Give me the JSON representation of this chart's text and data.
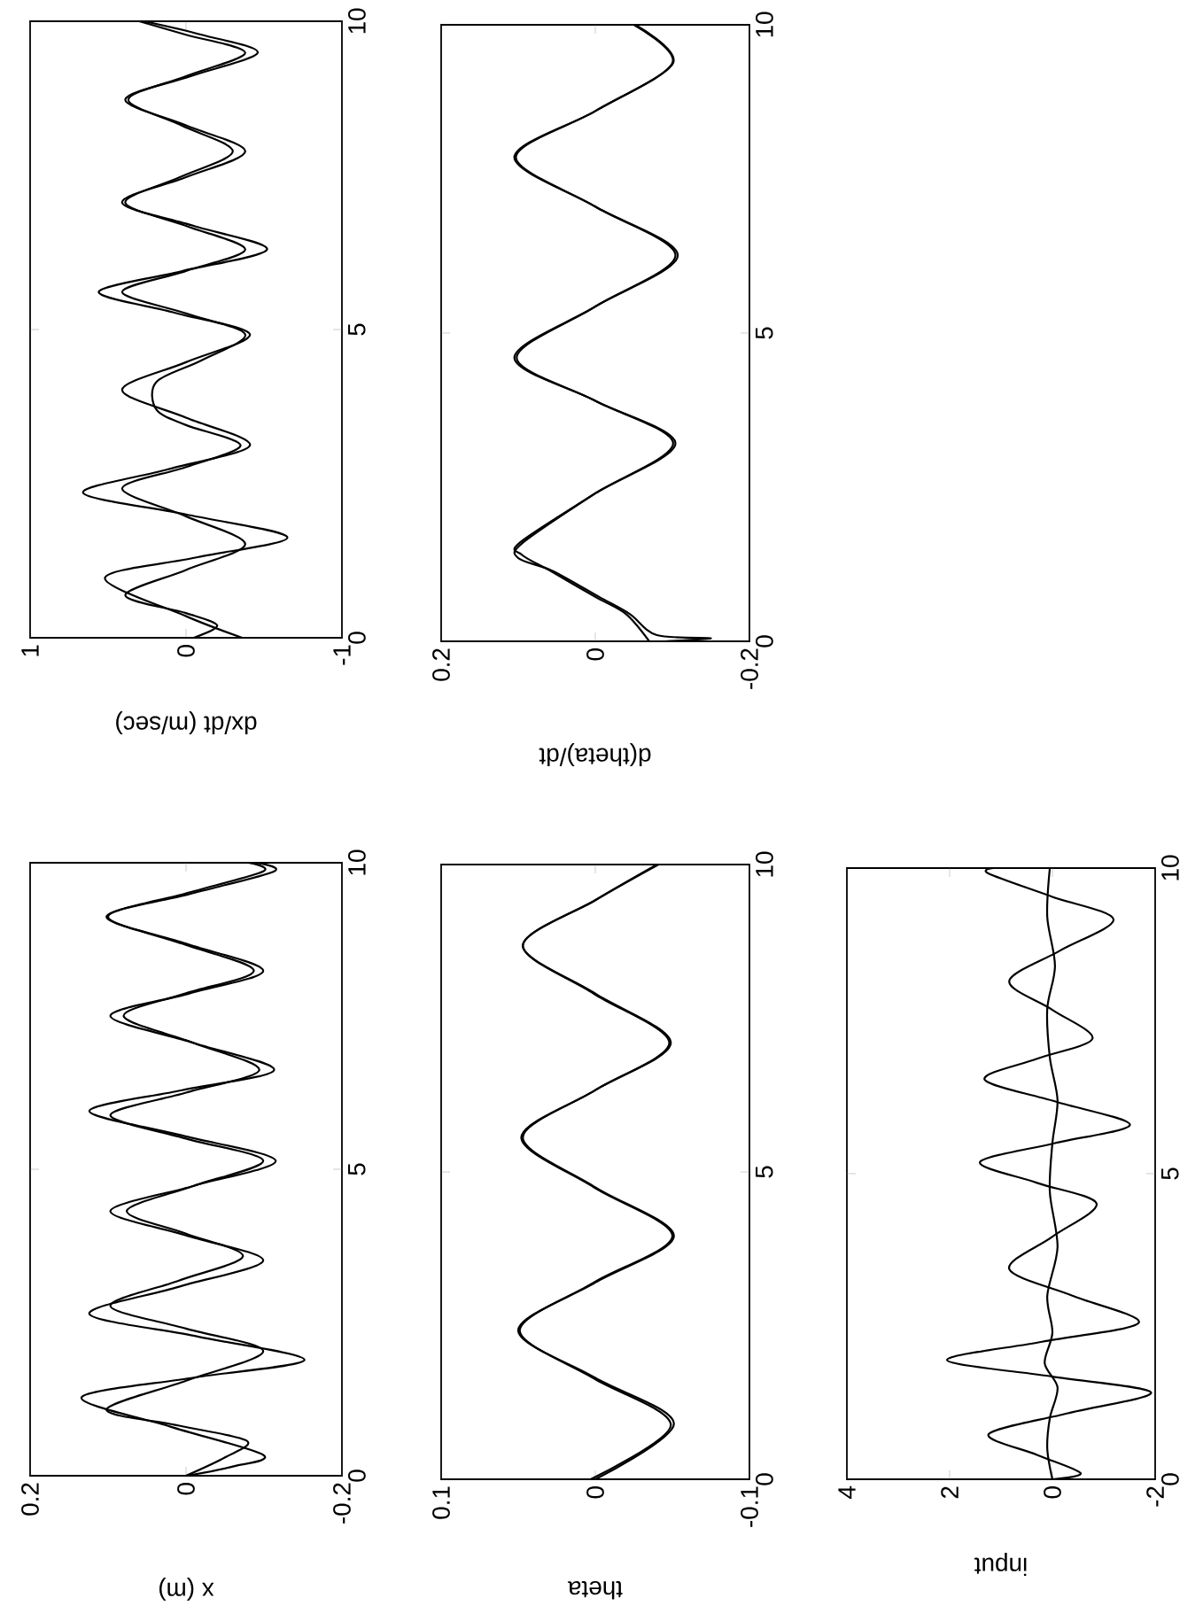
{
  "chart_data": [
    {
      "type": "line",
      "xlabel": "dx/dt (m/sec)",
      "xlim": [
        1,
        -1
      ],
      "xticks": [
        1,
        0,
        -1
      ],
      "ylim": [
        0,
        10
      ],
      "yticks": [
        0,
        5,
        10
      ],
      "series": [
        {
          "color": "#000000",
          "x": [
            -0.36,
            0.0,
            0.52,
            -0.06,
            -0.65,
            0.0,
            0.66,
            0.12,
            -0.41,
            0.0,
            0.41,
            0.0,
            -0.41,
            0.07,
            0.56,
            0.02,
            -0.52,
            -0.05,
            0.41,
            0.0,
            -0.38,
            0.0,
            0.39,
            -0.03,
            -0.46,
            -0.1,
            0.27
          ],
          "values": [
            0,
            0.35,
            0.97,
            1.3,
            1.63,
            2.0,
            2.35,
            2.73,
            3.12,
            3.57,
            4.02,
            4.47,
            4.92,
            5.27,
            5.61,
            5.95,
            6.3,
            6.68,
            7.06,
            7.47,
            7.89,
            8.31,
            8.73,
            9.11,
            9.49,
            9.78,
            10
          ]
        },
        {
          "color": "#000000",
          "x": [
            -0.05,
            -0.2,
            0.0,
            0.39,
            0.0,
            -0.38,
            0.0,
            0.41,
            0.0,
            -0.35,
            0.0,
            0.19,
            0.19,
            -0.1,
            -0.38,
            0.0,
            0.41,
            0.0,
            -0.38,
            0.0,
            0.39,
            0.04,
            -0.3,
            0.03,
            0.37,
            0.0,
            -0.38,
            0.0,
            0.3
          ],
          "values": [
            0,
            0.2,
            0.4,
            0.69,
            1.1,
            1.52,
            1.97,
            2.42,
            2.77,
            3.12,
            3.45,
            3.7,
            4.15,
            4.5,
            4.92,
            5.26,
            5.61,
            5.95,
            6.3,
            6.68,
            7.06,
            7.47,
            7.89,
            8.31,
            8.73,
            9.11,
            9.49,
            9.78,
            10
          ]
        }
      ]
    },
    {
      "type": "line",
      "xlabel": "d(theta)/dt",
      "xlim": [
        0.2,
        -0.2
      ],
      "xticks": [
        0.2,
        0,
        -0.2
      ],
      "ylim": [
        0,
        10
      ],
      "yticks": [
        0,
        5,
        10
      ],
      "series": [
        {
          "color": "#000000",
          "x": [
            -0.07,
            -0.04,
            0.0,
            0.058,
            0.095,
            0.098,
            0.0,
            -0.101,
            0.0,
            0.105,
            0.0,
            -0.107,
            0.0,
            0.105,
            0.0,
            -0.101,
            -0.052
          ],
          "values": [
            0,
            0.44,
            0.72,
            1.14,
            1.4,
            1.6,
            2.4,
            3.21,
            3.9,
            4.6,
            5.43,
            6.26,
            7.05,
            7.85,
            8.6,
            9.38,
            10
          ]
        },
        {
          "color": "#000000",
          "x": [
            -0.09,
            -0.15,
            -0.08,
            -0.045,
            -0.005,
            0.055,
            0.1,
            0.094,
            0.0,
            -0.104,
            0.0,
            0.102,
            0.0,
            -0.104,
            0.0,
            0.103,
            0.0,
            -0.1,
            -0.05
          ],
          "values": [
            0,
            0.05,
            0.1,
            0.44,
            0.72,
            1.14,
            1.35,
            1.6,
            2.4,
            3.21,
            3.9,
            4.6,
            5.43,
            6.26,
            7.05,
            7.85,
            8.6,
            9.38,
            10
          ]
        }
      ]
    },
    {
      "type": "line",
      "xlabel": "x (m)",
      "xlim": [
        0.2,
        -0.2
      ],
      "xticks": [
        0.2,
        0,
        -0.2
      ],
      "ylim": [
        0,
        10
      ],
      "yticks": [
        0,
        5,
        10
      ],
      "series": [
        {
          "color": "#000000",
          "x": [
            0.0,
            -0.06,
            -0.099,
            0.02,
            0.134,
            -0.01,
            -0.152,
            -0.015,
            0.124,
            0.01,
            -0.099,
            0.0,
            0.097,
            -0.01,
            -0.115,
            0.005,
            0.124,
            0.005,
            -0.113,
            -0.01,
            0.097,
            -0.005,
            -0.099,
            0.0,
            0.102,
            -0.005,
            -0.113,
            -0.089
          ],
          "values": [
            0,
            0.15,
            0.34,
            0.8,
            1.28,
            1.6,
            1.89,
            2.27,
            2.64,
            3.08,
            3.51,
            3.92,
            4.32,
            4.73,
            5.14,
            5.55,
            5.95,
            6.29,
            6.62,
            7.06,
            7.5,
            7.87,
            8.24,
            8.68,
            9.12,
            9.49,
            9.86,
            10
          ]
        },
        {
          "color": "#000000",
          "x": [
            0.0,
            -0.05,
            -0.078,
            0.01,
            0.102,
            0.0,
            -0.099,
            0.0,
            0.097,
            0.01,
            -0.073,
            0.0,
            0.076,
            -0.01,
            -0.099,
            0.0,
            0.097,
            0.0,
            -0.094,
            -0.01,
            0.08,
            0.0,
            -0.087,
            0.005,
            0.1,
            0.0,
            -0.099,
            -0.08
          ],
          "values": [
            0,
            0.3,
            0.57,
            0.82,
            1.08,
            1.55,
            2.03,
            2.4,
            2.77,
            3.18,
            3.58,
            3.95,
            4.32,
            4.73,
            5.14,
            5.5,
            5.88,
            6.25,
            6.62,
            7.06,
            7.5,
            7.87,
            8.24,
            8.68,
            9.12,
            9.5,
            9.86,
            10
          ]
        }
      ]
    },
    {
      "type": "line",
      "xlabel": "theta",
      "xlim": [
        0.1,
        -0.1
      ],
      "xticks": [
        0.1,
        0,
        -0.1
      ],
      "ylim": [
        0,
        10
      ],
      "yticks": [
        0,
        5,
        10
      ],
      "series": [
        {
          "color": "#000000",
          "x": [
            0.0,
            -0.051,
            0.0,
            0.05,
            0.0,
            -0.051,
            0.0,
            0.047,
            0.0,
            -0.049,
            0.0,
            0.047,
            0.0,
            -0.041
          ],
          "values": [
            0,
            0.9,
            1.65,
            2.42,
            3.2,
            3.96,
            4.75,
            5.56,
            6.33,
            7.1,
            7.9,
            8.68,
            9.42,
            10
          ]
        },
        {
          "color": "#000000",
          "x": [
            0.003,
            -0.049,
            0.001,
            0.049,
            0.001,
            -0.05,
            0.001,
            0.048,
            0.0,
            -0.048,
            0.001,
            0.047,
            0.0,
            -0.04
          ],
          "values": [
            0,
            0.88,
            1.64,
            2.42,
            3.2,
            3.96,
            4.75,
            5.56,
            6.33,
            7.1,
            7.9,
            8.68,
            9.42,
            10
          ]
        }
      ]
    },
    {
      "type": "line",
      "xlabel": "input",
      "xlim": [
        4,
        -2
      ],
      "xticks": [
        4,
        2,
        0,
        -2
      ],
      "ylim": [
        0,
        10
      ],
      "yticks": [
        0,
        5,
        10
      ],
      "series": [
        {
          "color": "#000000",
          "x": [
            0.0,
            -0.55,
            0.3,
            1.24,
            -0.3,
            -1.92,
            0.0,
            2.05,
            0.2,
            -1.68,
            -0.4,
            0.84,
            0.0,
            -0.86,
            0.3,
            1.41,
            -0.05,
            -1.51,
            -0.1,
            1.32,
            0.3,
            -0.78,
            0.0,
            0.84,
            -0.15,
            -1.19,
            0.0,
            1.24,
            1.15
          ],
          "values": [
            0,
            0.1,
            0.4,
            0.74,
            1.08,
            1.42,
            1.68,
            1.95,
            2.25,
            2.56,
            3.0,
            3.44,
            3.97,
            4.51,
            4.85,
            5.19,
            5.5,
            5.8,
            6.17,
            6.54,
            6.88,
            7.21,
            7.68,
            8.15,
            8.65,
            9.16,
            9.53,
            9.91,
            10
          ]
        },
        {
          "color": "#000000",
          "x": [
            0.0,
            0.1,
            0.05,
            -0.1,
            0.15,
            0.0,
            0.1,
            -0.1,
            0.05,
            0.0,
            -0.1,
            0.05,
            0.1,
            -0.05,
            0.1,
            0.05
          ],
          "values": [
            0,
            0.5,
            1,
            1.5,
            1.9,
            2.4,
            3,
            3.8,
            4.7,
            5.5,
            6.2,
            6.9,
            7.7,
            8.4,
            9.2,
            10
          ]
        }
      ]
    }
  ]
}
